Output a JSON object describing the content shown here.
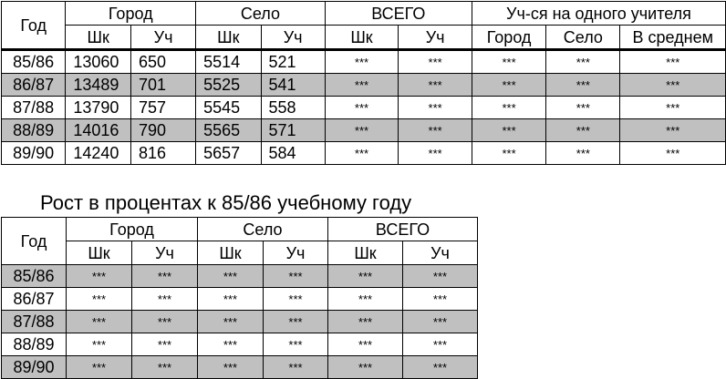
{
  "table1": {
    "col_year": "Год",
    "groups": [
      "Город",
      "Село",
      "ВСЕГО",
      "Уч-ся на одного учителя"
    ],
    "sub_headers": [
      "Шк",
      "Уч",
      "Шк",
      "Уч",
      "Шк",
      "Уч",
      "Город",
      "Село",
      "В среднем"
    ],
    "rows": [
      [
        "85/86",
        "13060",
        "650",
        "5514",
        "521",
        "***",
        "***",
        "***",
        "***",
        "***"
      ],
      [
        "86/87",
        "13489",
        "701",
        "5525",
        "541",
        "***",
        "***",
        "***",
        "***",
        "***"
      ],
      [
        "87/88",
        "13790",
        "757",
        "5545",
        "558",
        "***",
        "***",
        "***",
        "***",
        "***"
      ],
      [
        "88/89",
        "14016",
        "790",
        "5565",
        "571",
        "***",
        "***",
        "***",
        "***",
        "***"
      ],
      [
        "89/90",
        "14240",
        "816",
        "5657",
        "584",
        "***",
        "***",
        "***",
        "***",
        "***"
      ]
    ]
  },
  "caption": "Рост в процентах к 85/86  учебному году",
  "table2": {
    "col_year": "Год",
    "groups": [
      "Город",
      "Село",
      "ВСЕГО"
    ],
    "sub_headers": [
      "Шк",
      "Уч",
      "Шк",
      "Уч",
      "Шк",
      "Уч"
    ],
    "rows": [
      [
        "85/86",
        "***",
        "***",
        "***",
        "***",
        "***",
        "***"
      ],
      [
        "86/87",
        "***",
        "***",
        "***",
        "***",
        "***",
        "***"
      ],
      [
        "87/88",
        "***",
        "***",
        "***",
        "***",
        "***",
        "***"
      ],
      [
        "88/89",
        "***",
        "***",
        "***",
        "***",
        "***",
        "***"
      ],
      [
        "89/90",
        "***",
        "***",
        "***",
        "***",
        "***",
        "***"
      ]
    ]
  },
  "colors": {
    "shaded_row": "#c0c0c0",
    "border": "#000000"
  }
}
